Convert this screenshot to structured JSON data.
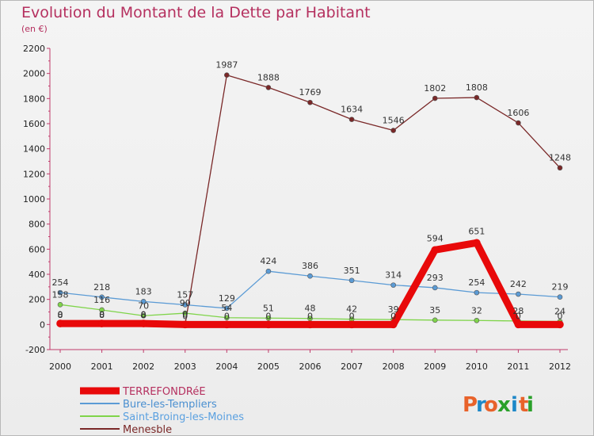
{
  "title": "Evolution du Montant de la Dette par Habitant",
  "subtitle": "(en €)",
  "logo": {
    "text": "Proxiti",
    "letters": [
      "P",
      "r",
      "o",
      "x",
      "i",
      "t",
      "i"
    ],
    "colors": [
      "#e8622a",
      "#1e88c8",
      "#e8622a",
      "#2aa02a",
      "#1e88c8",
      "#e8622a",
      "#2aa02a"
    ]
  },
  "chart_data": {
    "type": "line",
    "x": [
      "2000",
      "2001",
      "2002",
      "2003",
      "2004",
      "2005",
      "2006",
      "2007",
      "2008",
      "2009",
      "2010",
      "2011",
      "2012"
    ],
    "ylim": [
      -200,
      2200
    ],
    "yticks": [
      -200,
      0,
      200,
      400,
      600,
      800,
      1000,
      1200,
      1400,
      1600,
      1800,
      2000,
      2200
    ],
    "grid": false,
    "legend_position": "bottom-left",
    "series": [
      {
        "name": "TERREFONDRéE",
        "color": "#e8090a",
        "values": [
          8,
          8,
          8,
          0,
          0,
          0,
          0,
          0,
          0,
          594,
          651,
          0,
          0
        ],
        "labels": [
          "8",
          "8",
          "8",
          "0",
          "0",
          "0",
          "0",
          "0",
          "0",
          "594",
          "651",
          "0",
          "0"
        ]
      },
      {
        "name": "Bure-les-Templiers",
        "color": "#5b9bd5",
        "values": [
          254,
          218,
          183,
          157,
          129,
          424,
          386,
          351,
          314,
          293,
          254,
          242,
          219
        ],
        "labels": [
          "254",
          "218",
          "183",
          "157",
          "129",
          "424",
          "386",
          "351",
          "314",
          "293",
          "254",
          "242",
          "219"
        ]
      },
      {
        "name": "Saint-Broing-les-Moines",
        "color": "#7fd44a",
        "values": [
          158,
          116,
          70,
          90,
          54,
          51,
          48,
          42,
          39,
          35,
          32,
          28,
          24
        ],
        "labels": [
          "158",
          "116",
          "70",
          "90",
          "54",
          "51",
          "48",
          "42",
          "39",
          "35",
          "32",
          "28",
          "24"
        ]
      },
      {
        "name": "Menesble",
        "color": "#7a2828",
        "values": [
          0,
          0,
          0,
          0,
          1987,
          1888,
          1769,
          1634,
          1546,
          1802,
          1808,
          1606,
          1248
        ],
        "labels": [
          "0",
          "0",
          "0",
          "0",
          "1987",
          "1888",
          "1769",
          "1634",
          "1546",
          "1802",
          "1808",
          "1606",
          "1248"
        ]
      }
    ]
  }
}
